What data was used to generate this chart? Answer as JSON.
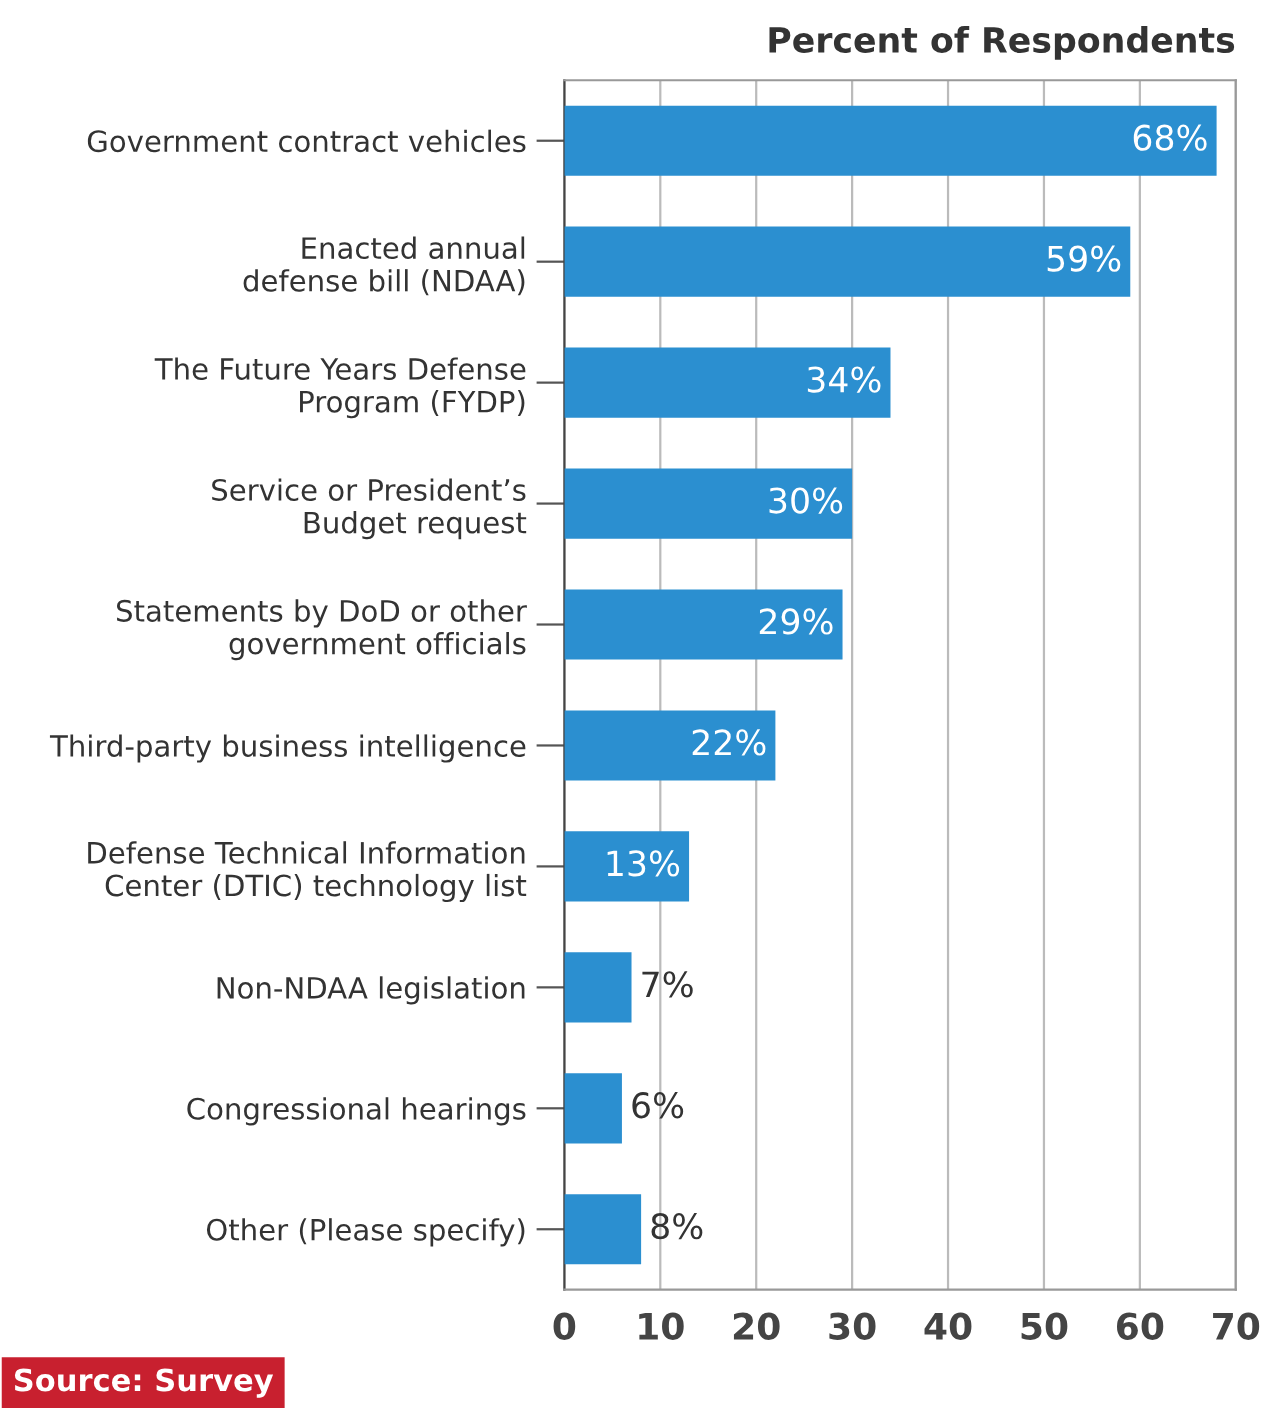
{
  "chart_data": {
    "type": "bar",
    "orientation": "horizontal",
    "title": "Percent of Respondents",
    "categories": [
      "Government contract vehicles",
      "Enacted annual\ndefense bill (NDAA)",
      "The Future Years Defense\nProgram (FYDP)",
      "Service or President’s\nBudget request",
      "Statements by DoD or other\ngovernment officials",
      "Third-party business intelligence",
      "Defense Technical Information\nCenter (DTIC) technology list",
      "Non-NDAA legislation",
      "Congressional hearings",
      "Other (Please specify)"
    ],
    "values": [
      68,
      59,
      34,
      30,
      29,
      22,
      13,
      7,
      6,
      8
    ],
    "value_labels": [
      "68%",
      "59%",
      "34%",
      "30%",
      "29%",
      "22%",
      "13%",
      "7%",
      "6%",
      "8%"
    ],
    "color": "#2b8fd0",
    "xlim": [
      0,
      70
    ],
    "xticks": [
      0,
      10,
      20,
      30,
      40,
      50,
      60,
      70
    ],
    "grid": "x",
    "annotations": [
      "Source: Survey"
    ]
  }
}
